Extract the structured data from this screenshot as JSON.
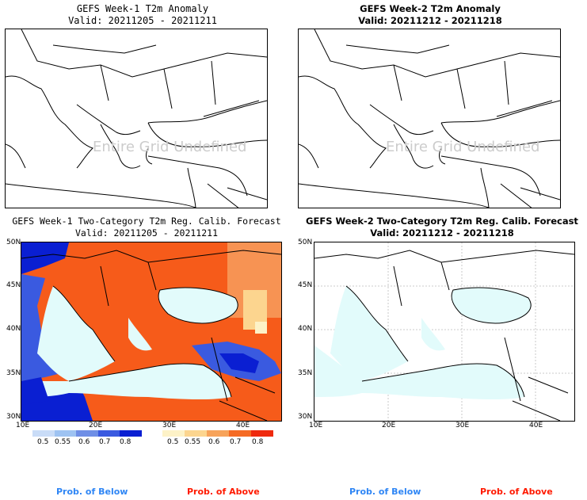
{
  "panels": [
    {
      "title": "GEFS Week-1 T2m Anomaly",
      "valid": "Valid: 20211205 - 20211211",
      "watermark": "Entire Grid Undefined"
    },
    {
      "title": "GEFS Week-2 T2m Anomaly",
      "valid": "Valid: 20211212 - 20211218",
      "watermark": "Entire Grid Undefined"
    },
    {
      "title": "GEFS Week-1 Two-Category T2m Reg. Calib. Forecast",
      "valid": "Valid: 20211205 - 20211211"
    },
    {
      "title": "GEFS Week-2 Two-Category T2m Reg. Calib. Forecast",
      "valid": "Valid: 20211212 - 20211218"
    }
  ],
  "axes": {
    "lat_labels": [
      "50N",
      "45N",
      "40N",
      "35N",
      "30N"
    ],
    "lon_labels": [
      "10E",
      "20E",
      "30E",
      "40E"
    ]
  },
  "colorbars": {
    "below": {
      "labels": [
        "0.5",
        "0.55",
        "0.6",
        "0.7",
        "0.8"
      ],
      "colors": [
        "#c9dcf7",
        "#9ec3f2",
        "#6f8fe6",
        "#3a5ae0",
        "#0a1fd2"
      ]
    },
    "above": {
      "labels": [
        "0.5",
        "0.55",
        "0.6",
        "0.7",
        "0.8"
      ],
      "colors": [
        "#fdf2c7",
        "#fcd58f",
        "#f7a35a",
        "#f56a23",
        "#ef2a0e"
      ]
    }
  },
  "legends": {
    "below_label": "Prob. of Below",
    "above_label": "Prob. of Above",
    "below_color": "#2f86f5",
    "above_color": "#ff1a00"
  },
  "colors": {
    "sea": "#e2fbfb",
    "above_main": "#f65b1a",
    "above_light": "#f79353",
    "below_main": "#0a1fd2",
    "below_mid": "#3a5ae0"
  }
}
